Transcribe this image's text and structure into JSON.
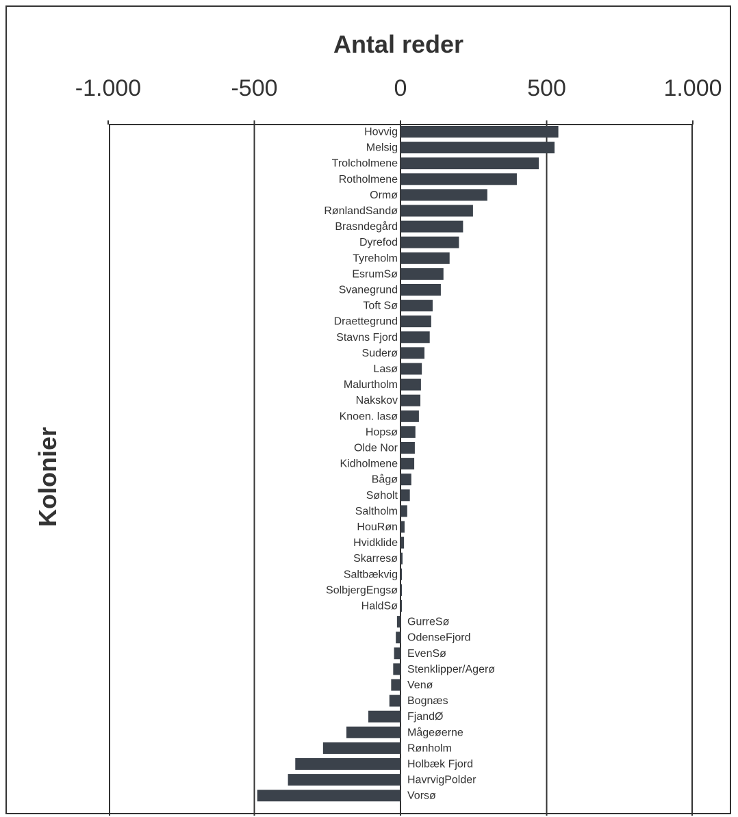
{
  "chart_data": {
    "type": "bar",
    "orientation": "horizontal",
    "title": "Antal reder",
    "xlabel": "Antal reder",
    "ylabel": "Kolonier",
    "xlim": [
      -1000,
      1000
    ],
    "xticks": [
      -1000,
      -500,
      0,
      500,
      1000
    ],
    "xtick_labels": [
      "-1.000",
      "-500",
      "0",
      "500",
      "1.000"
    ],
    "grid": "vertical",
    "categories": [
      "Hovvig",
      "Melsig",
      "Trolcholmene",
      "Rotholmene",
      "Ormø",
      "RønlandSandø",
      "Brasndegård",
      "Dyrefod",
      "Tyreholm",
      "EsrumSø",
      "Svanegrund",
      "Toft Sø",
      "Draettegrund",
      "Stavns Fjord",
      "Suderø",
      "Lasø",
      "Malurtholm",
      "Nakskov",
      "Knoen. lasø",
      "Hopsø",
      "Olde Nor",
      "Kidholmene",
      "Bågø",
      "Søholt",
      "Saltholm",
      "HouRøn",
      "Hvidklide",
      "Skarresø",
      "Saltbækvig",
      "SolbjergEngsø",
      "HaldSø",
      "GurreSø",
      "OdenseFjord",
      "EvenSø",
      "Stenklipper/Agerø",
      "Venø",
      "Bognæs",
      "FjandØ",
      "Mågeøerne",
      "Rønholm",
      "Holbæk Fjord",
      "HavrvigPolder",
      "Vorsø"
    ],
    "values": [
      540,
      527,
      473,
      398,
      297,
      248,
      214,
      200,
      168,
      147,
      138,
      110,
      105,
      100,
      82,
      73,
      70,
      68,
      63,
      51,
      49,
      47,
      37,
      32,
      23,
      14,
      12,
      7,
      4,
      3,
      2,
      -12,
      -16,
      -22,
      -25,
      -32,
      -38,
      -110,
      -185,
      -265,
      -360,
      -385,
      -490
    ],
    "bar_color": "#3b424b"
  }
}
